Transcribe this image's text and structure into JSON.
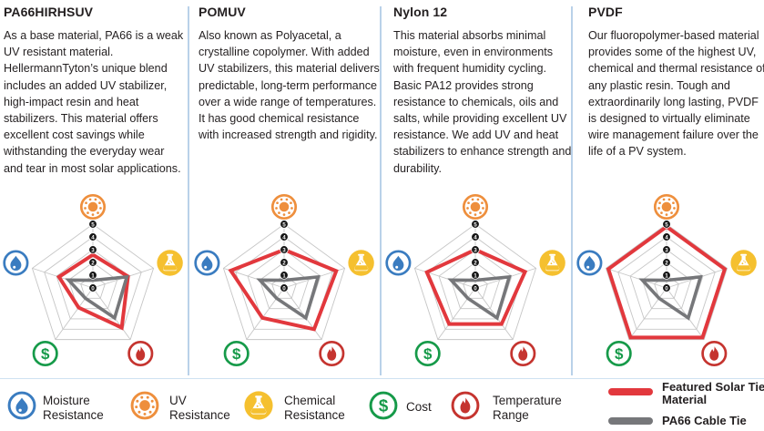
{
  "materials": [
    {
      "name": "PA66HIRHSUV",
      "description": "As a base material, PA66 is a weak UV resistant material. HellermannTyton’s unique blend includes an added UV stabilizer, high-impact resin and heat stabilizers. This material offers excellent cost savings while withstanding the everyday wear and tear in most solar applications."
    },
    {
      "name": "POMUV",
      "description": "Also known as Polyacetal, a crystalline copolymer. With added UV stabilizers, this material delivers predictable, long-term performance over a wide range of temperatures. It has good chemical resistance with increased strength and rigidity."
    },
    {
      "name": "Nylon 12",
      "description": "This material absorbs minimal moisture, even in environments with frequent humidity cycling. Basic PA12 provides strong resistance to chemicals, oils and salts, while providing excellent UV resistance. We add UV and heat stabilizers to enhance strength and durability."
    },
    {
      "name": "PVDF",
      "description": "Our fluoropolymer-based material provides some of the highest UV, chemical and thermal resistance of any plastic resin. Tough and extraordinarily long lasting, PVDF is designed to virtually eliminate wire management failure over the life of a PV system."
    }
  ],
  "chart_data": [
    {
      "type": "radar",
      "title": "PA66HIRHSUV",
      "axes": [
        "UV Resistance",
        "Chemical Resistance",
        "Temperature Range",
        "Cost",
        "Moisture Resistance"
      ],
      "scale": {
        "min": 0,
        "max": 5,
        "tick_labels": [
          "0",
          "1",
          "2",
          "3",
          "4",
          "5"
        ]
      },
      "series": [
        {
          "name": "Featured Solar Tie Material",
          "values": [
            2.6,
            2.9,
            3.85,
            1.9,
            2.8
          ]
        },
        {
          "name": "PA66 Cable Tie",
          "values": [
            0.6,
            2.8,
            2.9,
            1.0,
            2.0
          ]
        }
      ]
    },
    {
      "type": "radar",
      "title": "POMUV",
      "axes": [
        "UV Resistance",
        "Chemical Resistance",
        "Temperature Range",
        "Cost",
        "Moisture Resistance"
      ],
      "scale": {
        "min": 0,
        "max": 5,
        "tick_labels": [
          "0",
          "1",
          "2",
          "3",
          "4",
          "5"
        ]
      },
      "series": [
        {
          "name": "Featured Solar Tie Material",
          "values": [
            3.0,
            4.3,
            4.0,
            2.9,
            4.4
          ]
        },
        {
          "name": "PA66 Cable Tie",
          "values": [
            0.6,
            2.8,
            2.9,
            1.0,
            2.0
          ]
        }
      ]
    },
    {
      "type": "radar",
      "title": "Nylon 12",
      "axes": [
        "UV Resistance",
        "Chemical Resistance",
        "Temperature Range",
        "Cost",
        "Moisture Resistance"
      ],
      "scale": {
        "min": 0,
        "max": 5,
        "tick_labels": [
          "0",
          "1",
          "2",
          "3",
          "4",
          "5"
        ]
      },
      "series": [
        {
          "name": "Featured Solar Tie Material",
          "values": [
            3.0,
            4.1,
            3.5,
            3.5,
            4.0
          ]
        },
        {
          "name": "PA66 Cable Tie",
          "values": [
            0.6,
            2.8,
            2.9,
            1.0,
            2.0
          ]
        }
      ]
    },
    {
      "type": "radar",
      "title": "PVDF",
      "axes": [
        "UV Resistance",
        "Chemical Resistance",
        "Temperature Range",
        "Cost",
        "Moisture Resistance"
      ],
      "scale": {
        "min": 0,
        "max": 5,
        "tick_labels": [
          "0",
          "1",
          "2",
          "3",
          "4",
          "5"
        ]
      },
      "series": [
        {
          "name": "Featured Solar Tie Material",
          "values": [
            4.8,
            4.8,
            4.8,
            4.8,
            4.8
          ]
        },
        {
          "name": "PA66 Cable Tie",
          "values": [
            0.6,
            2.8,
            2.9,
            1.0,
            2.0
          ]
        }
      ]
    }
  ],
  "legend": {
    "axis_items": [
      {
        "icon": "moisture-droplet-icon",
        "label_lines": [
          "Moisture",
          "Resistance"
        ]
      },
      {
        "icon": "uv-sun-icon",
        "label_lines": [
          "UV",
          "Resistance"
        ]
      },
      {
        "icon": "chemical-flask-icon",
        "label_lines": [
          "Chemical",
          "Resistance"
        ]
      },
      {
        "icon": "cost-dollar-icon",
        "label_lines": [
          "Cost"
        ]
      },
      {
        "icon": "temperature-flame-icon",
        "label_lines": [
          "Temperature",
          "Range"
        ]
      }
    ],
    "series_items": [
      {
        "swatch": "red-line",
        "label_lines": [
          "Featured Solar Tie",
          "Material"
        ]
      },
      {
        "swatch": "gray-line",
        "label_lines": [
          "PA66 Cable Tie"
        ]
      }
    ]
  },
  "colors": {
    "blue": "#3a7cc0",
    "orange": "#ee8f3d",
    "yellow": "#f5c02f",
    "green": "#169a49",
    "red_icon": "#c5342f",
    "red_series": "#e2383d",
    "gray_series": "#76777a",
    "grid": "#c6c6c6",
    "badge": "#141414",
    "divider": "#b9d1e9",
    "text": "#231f20"
  }
}
